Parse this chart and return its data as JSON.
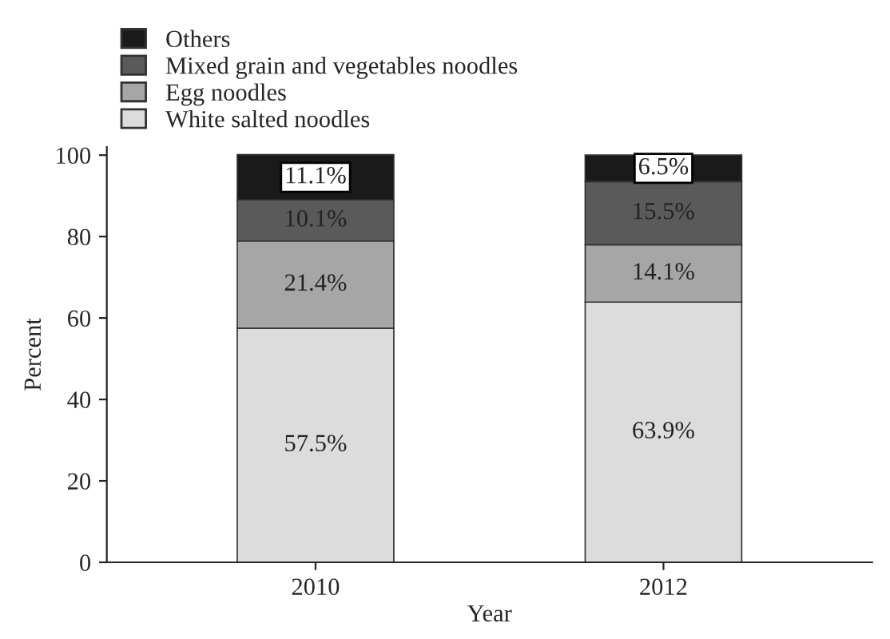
{
  "chart_data": {
    "type": "bar",
    "stacked": true,
    "xlabel": "Year",
    "ylabel": "Percent",
    "categories": [
      "2010",
      "2012"
    ],
    "series": [
      {
        "name": "White salted noodles",
        "color": "#dcdcdc",
        "values": [
          57.5,
          63.9
        ],
        "value_labels": [
          "57.5%",
          "63.9%"
        ]
      },
      {
        "name": "Egg noodles",
        "color": "#a6a6a6",
        "values": [
          21.4,
          14.1
        ],
        "value_labels": [
          "21.4%",
          "14.1%"
        ]
      },
      {
        "name": "Mixed grain and vegetables noodles",
        "color": "#5a5a5a",
        "values": [
          10.1,
          15.5
        ],
        "value_labels": [
          "10.1%",
          "15.5%"
        ]
      },
      {
        "name": "Others",
        "color": "#1a1a1a",
        "values": [
          11.1,
          6.5
        ],
        "value_labels": [
          "11.1%",
          "6.5%"
        ]
      }
    ],
    "ylim": [
      0,
      102
    ],
    "yticks": [
      0,
      20,
      40,
      60,
      80,
      100
    ],
    "grid": false,
    "legend": "top left"
  }
}
